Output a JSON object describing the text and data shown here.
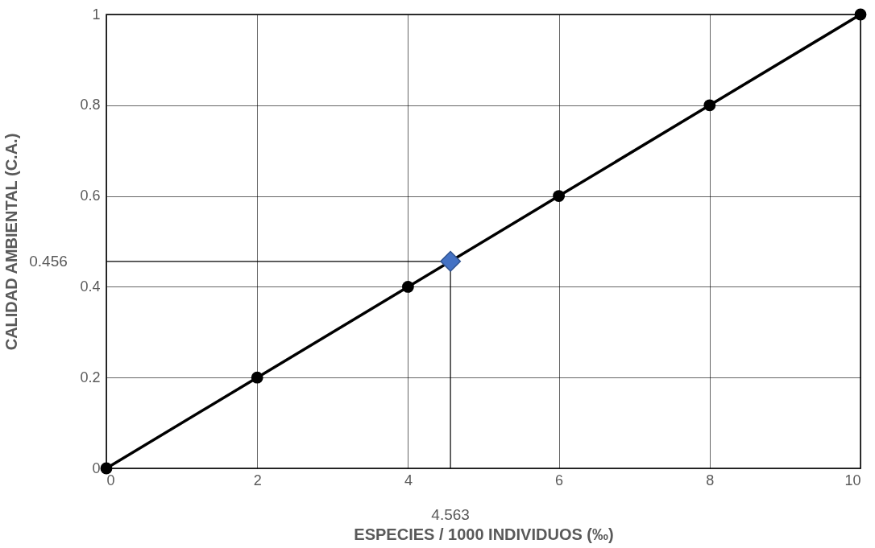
{
  "chart_data": {
    "type": "line",
    "xlabel": "ESPECIES / 1000 INDIVIDUOS (‰)",
    "ylabel": "CALIDAD AMBIENTAL (C.A.)",
    "x": [
      0,
      2,
      4,
      6,
      8,
      10
    ],
    "series": [
      {
        "color": "#000000",
        "marker": "circle",
        "values": [
          0,
          0.2,
          0.4,
          0.6,
          0.8,
          1
        ]
      },
      {
        "type": "scatter",
        "color": "#4472c4",
        "marker": "diamond",
        "x": [
          4.563
        ],
        "values": [
          0.456
        ]
      }
    ],
    "ref_lines": [
      {
        "axis": "x",
        "value": 4.563,
        "label": "4.563"
      },
      {
        "axis": "y",
        "value": 0.456,
        "label": "0.456"
      }
    ],
    "xlim": [
      0,
      10
    ],
    "xticks": [
      0,
      2,
      4,
      6,
      8,
      10
    ],
    "ylim": [
      0,
      1
    ],
    "yticks": [
      0,
      0.2,
      0.4,
      0.6,
      0.8,
      1
    ],
    "grid": true,
    "line_style": "solid"
  }
}
